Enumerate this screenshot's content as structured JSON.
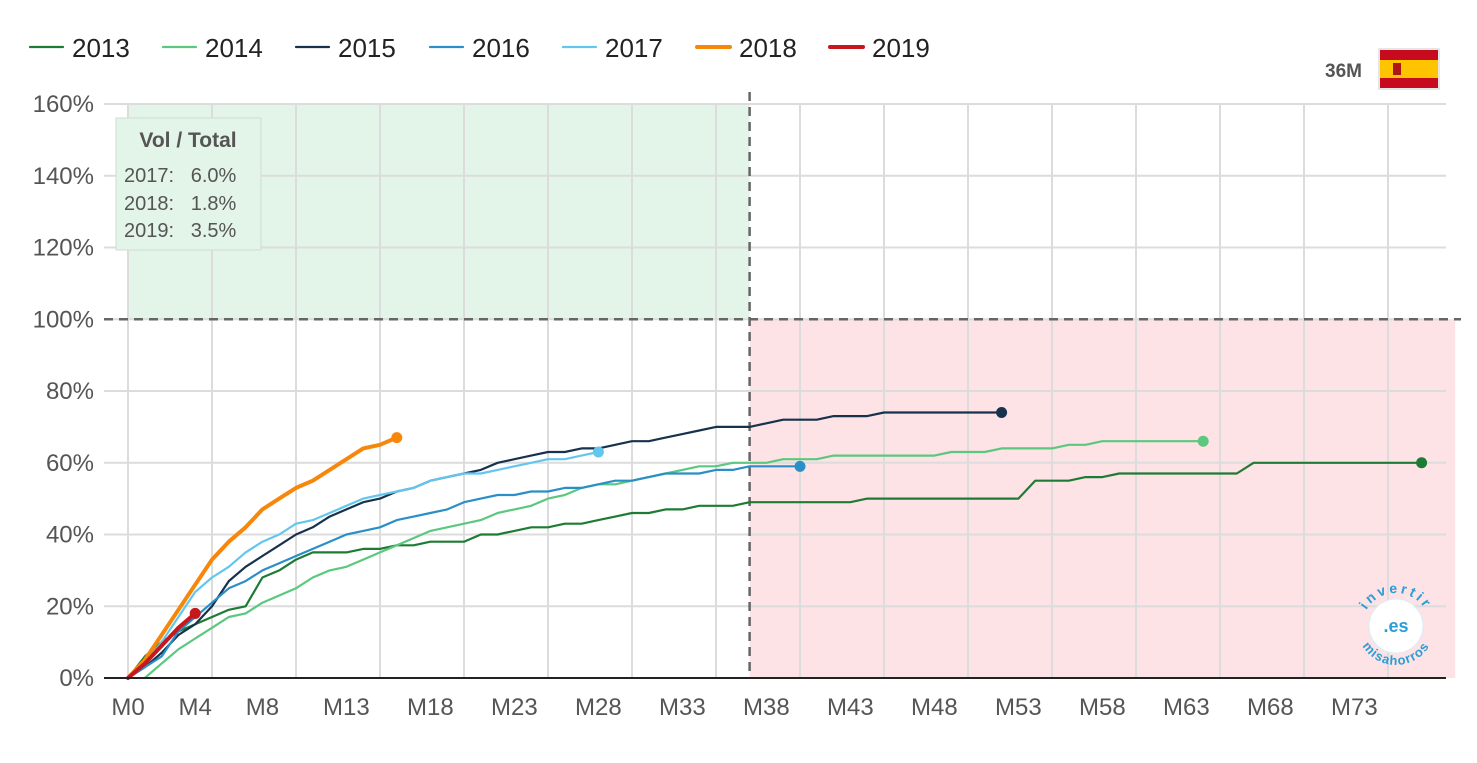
{
  "chart_data": {
    "type": "line",
    "title": "",
    "xlabel": "",
    "ylabel": "",
    "x_unit": "month",
    "xlim": [
      0,
      78
    ],
    "ylim": [
      0,
      160
    ],
    "x_ticks": [
      0,
      4,
      8,
      13,
      18,
      23,
      28,
      33,
      38,
      43,
      48,
      53,
      58,
      63,
      68,
      73
    ],
    "x_tick_labels": [
      "M0",
      "M4",
      "M8",
      "M13",
      "M18",
      "M23",
      "M28",
      "M33",
      "M38",
      "M43",
      "M48",
      "M53",
      "M58",
      "M63",
      "M68",
      "M73"
    ],
    "y_ticks": [
      0,
      20,
      40,
      60,
      80,
      100,
      120,
      140,
      160
    ],
    "y_tick_labels": [
      "0%",
      "20%",
      "40%",
      "60%",
      "80%",
      "100%",
      "120%",
      "140%",
      "160%"
    ],
    "grid": true,
    "legend_position": "top-left",
    "reference_lines": {
      "y": 100,
      "x": 37
    },
    "regions": [
      {
        "name": "upper-left-zone",
        "x": [
          0,
          37
        ],
        "y": [
          100,
          160
        ],
        "color": "#e3f4e8"
      },
      {
        "name": "lower-right-zone",
        "x": [
          37,
          79
        ],
        "y": [
          0,
          100
        ],
        "color": "#fde2e6"
      }
    ],
    "series": [
      {
        "name": "2013",
        "color": "#1e7b34",
        "points": [
          [
            0,
            0
          ],
          [
            1,
            6
          ],
          [
            2,
            10
          ],
          [
            3,
            13
          ],
          [
            4,
            15
          ],
          [
            5,
            17
          ],
          [
            6,
            19
          ],
          [
            7,
            20
          ],
          [
            8,
            28
          ],
          [
            9,
            30
          ],
          [
            10,
            33
          ],
          [
            11,
            35
          ],
          [
            12,
            35
          ],
          [
            13,
            35
          ],
          [
            14,
            36
          ],
          [
            15,
            36
          ],
          [
            16,
            37
          ],
          [
            17,
            37
          ],
          [
            18,
            38
          ],
          [
            19,
            38
          ],
          [
            20,
            38
          ],
          [
            21,
            40
          ],
          [
            22,
            40
          ],
          [
            23,
            41
          ],
          [
            24,
            42
          ],
          [
            25,
            42
          ],
          [
            26,
            43
          ],
          [
            27,
            43
          ],
          [
            28,
            44
          ],
          [
            29,
            45
          ],
          [
            30,
            46
          ],
          [
            31,
            46
          ],
          [
            32,
            47
          ],
          [
            33,
            47
          ],
          [
            34,
            48
          ],
          [
            35,
            48
          ],
          [
            36,
            48
          ],
          [
            37,
            49
          ],
          [
            38,
            49
          ],
          [
            43,
            49
          ],
          [
            44,
            50
          ],
          [
            53,
            50
          ],
          [
            54,
            55
          ],
          [
            56,
            55
          ],
          [
            57,
            56
          ],
          [
            58,
            56
          ],
          [
            59,
            57
          ],
          [
            66,
            57
          ],
          [
            67,
            60
          ],
          [
            77,
            60
          ]
        ]
      },
      {
        "name": "2014",
        "color": "#5ac87e",
        "points": [
          [
            1,
            0
          ],
          [
            2,
            4
          ],
          [
            3,
            8
          ],
          [
            4,
            11
          ],
          [
            5,
            14
          ],
          [
            6,
            17
          ],
          [
            7,
            18
          ],
          [
            8,
            21
          ],
          [
            9,
            23
          ],
          [
            10,
            25
          ],
          [
            11,
            28
          ],
          [
            12,
            30
          ],
          [
            13,
            31
          ],
          [
            14,
            33
          ],
          [
            15,
            35
          ],
          [
            16,
            37
          ],
          [
            17,
            39
          ],
          [
            18,
            41
          ],
          [
            19,
            42
          ],
          [
            20,
            43
          ],
          [
            21,
            44
          ],
          [
            22,
            46
          ],
          [
            23,
            47
          ],
          [
            24,
            48
          ],
          [
            25,
            50
          ],
          [
            26,
            51
          ],
          [
            27,
            53
          ],
          [
            28,
            54
          ],
          [
            29,
            54
          ],
          [
            30,
            55
          ],
          [
            31,
            56
          ],
          [
            32,
            57
          ],
          [
            33,
            58
          ],
          [
            34,
            59
          ],
          [
            35,
            59
          ],
          [
            36,
            60
          ],
          [
            37,
            60
          ],
          [
            38,
            60
          ],
          [
            39,
            61
          ],
          [
            40,
            61
          ],
          [
            41,
            61
          ],
          [
            42,
            62
          ],
          [
            48,
            62
          ],
          [
            49,
            63
          ],
          [
            51,
            63
          ],
          [
            52,
            64
          ],
          [
            55,
            64
          ],
          [
            56,
            65
          ],
          [
            57,
            65
          ],
          [
            58,
            66
          ],
          [
            64,
            66
          ]
        ]
      },
      {
        "name": "2015",
        "color": "#17324d",
        "points": [
          [
            0,
            0
          ],
          [
            1,
            3
          ],
          [
            2,
            7
          ],
          [
            3,
            12
          ],
          [
            4,
            15
          ],
          [
            5,
            20
          ],
          [
            6,
            27
          ],
          [
            7,
            31
          ],
          [
            8,
            34
          ],
          [
            9,
            37
          ],
          [
            10,
            40
          ],
          [
            11,
            42
          ],
          [
            12,
            45
          ],
          [
            13,
            47
          ],
          [
            14,
            49
          ],
          [
            15,
            50
          ],
          [
            16,
            52
          ],
          [
            17,
            53
          ],
          [
            18,
            55
          ],
          [
            19,
            56
          ],
          [
            20,
            57
          ],
          [
            21,
            58
          ],
          [
            22,
            60
          ],
          [
            23,
            61
          ],
          [
            24,
            62
          ],
          [
            25,
            63
          ],
          [
            26,
            63
          ],
          [
            27,
            64
          ],
          [
            28,
            64
          ],
          [
            29,
            65
          ],
          [
            30,
            66
          ],
          [
            31,
            66
          ],
          [
            32,
            67
          ],
          [
            33,
            68
          ],
          [
            34,
            69
          ],
          [
            35,
            70
          ],
          [
            36,
            70
          ],
          [
            37,
            70
          ],
          [
            38,
            71
          ],
          [
            39,
            72
          ],
          [
            40,
            72
          ],
          [
            41,
            72
          ],
          [
            42,
            73
          ],
          [
            43,
            73
          ],
          [
            44,
            73
          ],
          [
            45,
            74
          ],
          [
            52,
            74
          ]
        ]
      },
      {
        "name": "2016",
        "color": "#2a8fc7",
        "points": [
          [
            0,
            0
          ],
          [
            1,
            3
          ],
          [
            2,
            6
          ],
          [
            3,
            13
          ],
          [
            4,
            17
          ],
          [
            5,
            21
          ],
          [
            6,
            25
          ],
          [
            7,
            27
          ],
          [
            8,
            30
          ],
          [
            9,
            32
          ],
          [
            10,
            34
          ],
          [
            11,
            36
          ],
          [
            12,
            38
          ],
          [
            13,
            40
          ],
          [
            14,
            41
          ],
          [
            15,
            42
          ],
          [
            16,
            44
          ],
          [
            17,
            45
          ],
          [
            18,
            46
          ],
          [
            19,
            47
          ],
          [
            20,
            49
          ],
          [
            21,
            50
          ],
          [
            22,
            51
          ],
          [
            23,
            51
          ],
          [
            24,
            52
          ],
          [
            25,
            52
          ],
          [
            26,
            53
          ],
          [
            27,
            53
          ],
          [
            28,
            54
          ],
          [
            29,
            55
          ],
          [
            30,
            55
          ],
          [
            31,
            56
          ],
          [
            32,
            57
          ],
          [
            33,
            57
          ],
          [
            34,
            57
          ],
          [
            35,
            58
          ],
          [
            36,
            58
          ],
          [
            37,
            59
          ],
          [
            38,
            59
          ],
          [
            39,
            59
          ],
          [
            40,
            59
          ]
        ]
      },
      {
        "name": "2017",
        "color": "#62c6ef",
        "points": [
          [
            0,
            0
          ],
          [
            1,
            4
          ],
          [
            2,
            10
          ],
          [
            3,
            17
          ],
          [
            4,
            24
          ],
          [
            5,
            28
          ],
          [
            6,
            31
          ],
          [
            7,
            35
          ],
          [
            8,
            38
          ],
          [
            9,
            40
          ],
          [
            10,
            43
          ],
          [
            11,
            44
          ],
          [
            12,
            46
          ],
          [
            13,
            48
          ],
          [
            14,
            50
          ],
          [
            15,
            51
          ],
          [
            16,
            52
          ],
          [
            17,
            53
          ],
          [
            18,
            55
          ],
          [
            19,
            56
          ],
          [
            20,
            57
          ],
          [
            21,
            57
          ],
          [
            22,
            58
          ],
          [
            23,
            59
          ],
          [
            24,
            60
          ],
          [
            25,
            61
          ],
          [
            26,
            61
          ],
          [
            27,
            62
          ],
          [
            28,
            63
          ]
        ]
      },
      {
        "name": "2018",
        "color": "#f7870b",
        "points": [
          [
            0,
            0
          ],
          [
            1,
            5
          ],
          [
            2,
            12
          ],
          [
            3,
            19
          ],
          [
            4,
            26
          ],
          [
            5,
            33
          ],
          [
            6,
            38
          ],
          [
            7,
            42
          ],
          [
            8,
            47
          ],
          [
            9,
            50
          ],
          [
            10,
            53
          ],
          [
            11,
            55
          ],
          [
            12,
            58
          ],
          [
            13,
            61
          ],
          [
            14,
            64
          ],
          [
            15,
            65
          ],
          [
            16,
            67
          ]
        ]
      },
      {
        "name": "2019",
        "color": "#c8161d",
        "points": [
          [
            0,
            0
          ],
          [
            1,
            4
          ],
          [
            2,
            9
          ],
          [
            3,
            14
          ],
          [
            4,
            18
          ]
        ]
      }
    ]
  },
  "info_box": {
    "title": "Vol / Total",
    "lines": [
      "2017:   6.0%",
      "2018:   1.8%",
      "2019:   3.5%"
    ]
  },
  "tag": "36M",
  "flag": {
    "name": "spain-flag-icon",
    "colors": [
      "#c60b1e",
      "#ffc400"
    ]
  },
  "watermark": {
    "name": "invertir-misahorros-logo",
    "top": "invertir",
    "center": ".es",
    "bottom": "misahorros"
  }
}
